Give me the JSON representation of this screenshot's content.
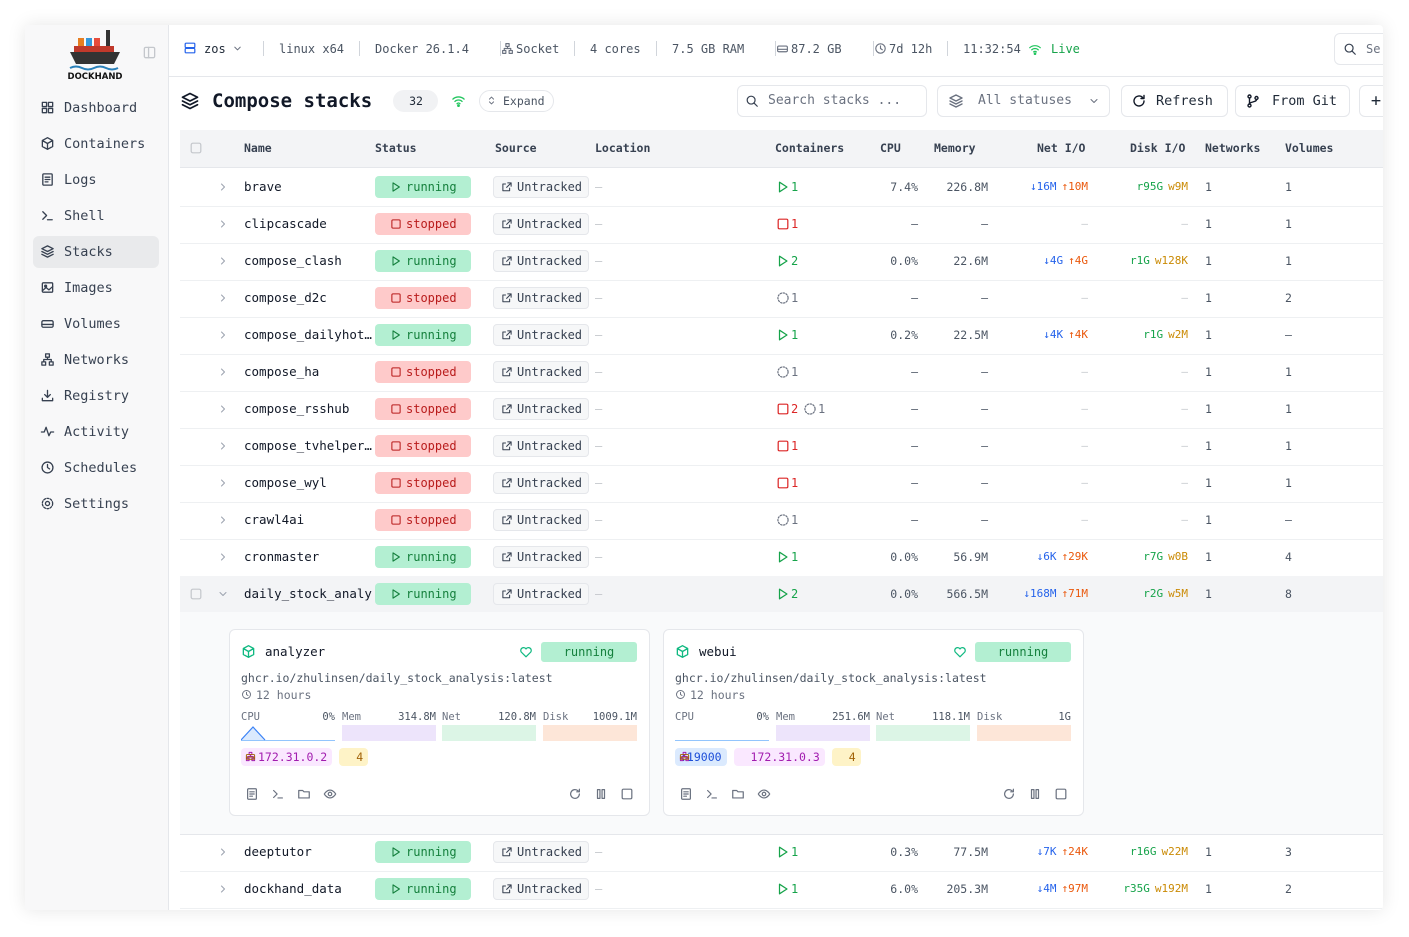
{
  "sidebar": {
    "brand": "DOCKHAND",
    "nav": [
      "Dashboard",
      "Containers",
      "Logs",
      "Shell",
      "Stacks",
      "Images",
      "Volumes",
      "Networks",
      "Registry",
      "Activity",
      "Schedules",
      "Settings"
    ],
    "active": 4
  },
  "topbar": {
    "host": "zos",
    "stats": [
      "linux x64",
      "Docker 26.1.4",
      "Socket",
      "4 cores",
      "7.5 GB RAM",
      "87.2 GB",
      "7d 12h",
      "11:32:54"
    ],
    "live": "Live",
    "search": "Se"
  },
  "header": {
    "title": "Compose stacks",
    "count": "32",
    "expand": "Expand",
    "search_placeholder": "Search stacks ...",
    "filter": "All statuses",
    "refresh": "Refresh",
    "from_git": "From Git",
    "add": "+"
  },
  "table": {
    "columns": [
      "Name",
      "Status",
      "Source",
      "Location",
      "Containers",
      "CPU",
      "Memory",
      "Net I/O",
      "Disk I/O",
      "Networks",
      "Volumes"
    ],
    "rows": [
      {
        "name": "brave",
        "status": "running",
        "source": "Untracked",
        "location": "–",
        "containers": [
          {
            "state": "running",
            "count": "1"
          }
        ],
        "cpu": "7.4%",
        "memory": "226.8M",
        "net": [
          "↓16M",
          "↑10M"
        ],
        "disk": [
          "r95G",
          "w9M"
        ],
        "networks": "1",
        "volumes": "1"
      },
      {
        "name": "clipcascade",
        "status": "stopped",
        "source": "Untracked",
        "location": "–",
        "containers": [
          {
            "state": "stopped",
            "count": "1"
          }
        ],
        "cpu": "–",
        "memory": "–",
        "net": [
          "–"
        ],
        "disk": [
          "–"
        ],
        "networks": "1",
        "volumes": "1"
      },
      {
        "name": "compose_clash",
        "status": "running",
        "source": "Untracked",
        "location": "–",
        "containers": [
          {
            "state": "running",
            "count": "2"
          }
        ],
        "cpu": "0.0%",
        "memory": "22.6M",
        "net": [
          "↓4G",
          "↑4G"
        ],
        "disk": [
          "r1G",
          "w128K"
        ],
        "networks": "1",
        "volumes": "1"
      },
      {
        "name": "compose_d2c",
        "status": "stopped",
        "source": "Untracked",
        "location": "–",
        "containers": [
          {
            "state": "created",
            "count": "1"
          }
        ],
        "cpu": "–",
        "memory": "–",
        "net": [
          "–"
        ],
        "disk": [
          "–"
        ],
        "networks": "1",
        "volumes": "2"
      },
      {
        "name": "compose_dailyhot…",
        "status": "running",
        "source": "Untracked",
        "location": "–",
        "containers": [
          {
            "state": "running",
            "count": "1"
          }
        ],
        "cpu": "0.2%",
        "memory": "22.5M",
        "net": [
          "↓4K",
          "↑4K"
        ],
        "disk": [
          "r1G",
          "w2M"
        ],
        "networks": "1",
        "volumes": "–"
      },
      {
        "name": "compose_ha",
        "status": "stopped",
        "source": "Untracked",
        "location": "–",
        "containers": [
          {
            "state": "created",
            "count": "1"
          }
        ],
        "cpu": "–",
        "memory": "–",
        "net": [
          "–"
        ],
        "disk": [
          "–"
        ],
        "networks": "1",
        "volumes": "1"
      },
      {
        "name": "compose_rsshub",
        "status": "stopped",
        "source": "Untracked",
        "location": "–",
        "containers": [
          {
            "state": "stopped",
            "count": "2"
          },
          {
            "state": "created",
            "count": "1"
          }
        ],
        "cpu": "–",
        "memory": "–",
        "net": [
          "–"
        ],
        "disk": [
          "–"
        ],
        "networks": "1",
        "volumes": "1"
      },
      {
        "name": "compose_tvhelper…",
        "status": "stopped",
        "source": "Untracked",
        "location": "–",
        "containers": [
          {
            "state": "stopped",
            "count": "1"
          }
        ],
        "cpu": "–",
        "memory": "–",
        "net": [
          "–"
        ],
        "disk": [
          "–"
        ],
        "networks": "1",
        "volumes": "1"
      },
      {
        "name": "compose_wyl",
        "status": "stopped",
        "source": "Untracked",
        "location": "–",
        "containers": [
          {
            "state": "stopped",
            "count": "1"
          }
        ],
        "cpu": "–",
        "memory": "–",
        "net": [
          "–"
        ],
        "disk": [
          "–"
        ],
        "networks": "1",
        "volumes": "1"
      },
      {
        "name": "crawl4ai",
        "status": "stopped",
        "source": "Untracked",
        "location": "–",
        "containers": [
          {
            "state": "created",
            "count": "1"
          }
        ],
        "cpu": "–",
        "memory": "–",
        "net": [
          "–"
        ],
        "disk": [
          "–"
        ],
        "networks": "1",
        "volumes": "–"
      },
      {
        "name": "cronmaster",
        "status": "running",
        "source": "Untracked",
        "location": "–",
        "containers": [
          {
            "state": "running",
            "count": "1"
          }
        ],
        "cpu": "0.0%",
        "memory": "56.9M",
        "net": [
          "↓6K",
          "↑29K"
        ],
        "disk": [
          "r7G",
          "w0B"
        ],
        "networks": "1",
        "volumes": "4"
      },
      {
        "name": "daily_stock_analy",
        "status": "running",
        "source": "Untracked",
        "location": "–",
        "containers": [
          {
            "state": "running",
            "count": "2"
          }
        ],
        "cpu": "0.0%",
        "memory": "566.5M",
        "net": [
          "↓168M",
          "↑71M"
        ],
        "disk": [
          "r2G",
          "w5M"
        ],
        "networks": "1",
        "volumes": "8"
      },
      {
        "name": "deeptutor",
        "status": "running",
        "source": "Untracked",
        "location": "–",
        "containers": [
          {
            "state": "running",
            "count": "1"
          }
        ],
        "cpu": "0.3%",
        "memory": "77.5M",
        "net": [
          "↓7K",
          "↑24K"
        ],
        "disk": [
          "r16G",
          "w22M"
        ],
        "networks": "1",
        "volumes": "3"
      },
      {
        "name": "dockhand_data",
        "status": "running",
        "source": "Untracked",
        "location": "–",
        "containers": [
          {
            "state": "running",
            "count": "1"
          }
        ],
        "cpu": "6.0%",
        "memory": "205.3M",
        "net": [
          "↓4M",
          "↑97M"
        ],
        "disk": [
          "r35G",
          "w192M"
        ],
        "networks": "1",
        "volumes": "2"
      }
    ],
    "expanded_row": 11,
    "detail": {
      "cards": [
        {
          "name": "analyzer",
          "status": "running",
          "image": "ghcr.io/zhulinsen/daily_stock_analysis:latest",
          "uptime": "12 hours",
          "metrics": [
            {
              "label": "CPU",
              "value": "0%"
            },
            {
              "label": "Mem",
              "value": "314.8M"
            },
            {
              "label": "Net",
              "value": "120.8M"
            },
            {
              "label": "Disk",
              "value": "1009.1M"
            }
          ],
          "ports": [],
          "ip": "172.31.0.2",
          "networks": "4"
        },
        {
          "name": "webui",
          "status": "running",
          "image": "ghcr.io/zhulinsen/daily_stock_analysis:latest",
          "uptime": "12 hours",
          "metrics": [
            {
              "label": "CPU",
              "value": "0%"
            },
            {
              "label": "Mem",
              "value": "251.6M"
            },
            {
              "label": "Net",
              "value": "118.1M"
            },
            {
              "label": "Disk",
              "value": "1G"
            }
          ],
          "ports": [
            ":19000"
          ],
          "ip": "172.31.0.3",
          "networks": "4"
        }
      ]
    }
  }
}
